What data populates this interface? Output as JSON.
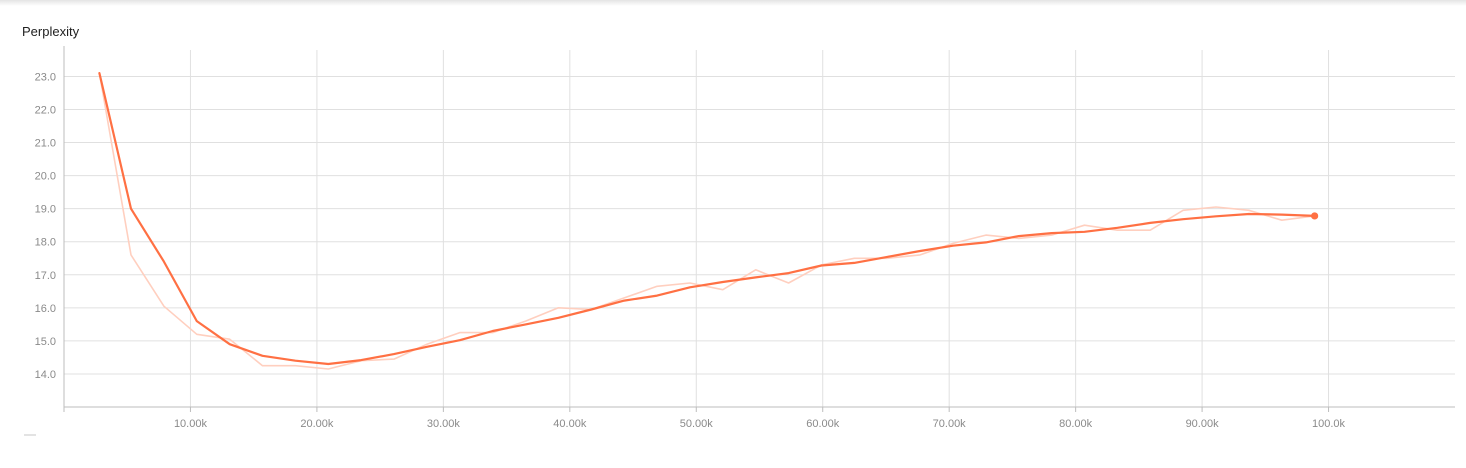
{
  "chart_data": {
    "type": "line",
    "title": "Perplexity",
    "xlabel": "",
    "ylabel": "",
    "xlim": [
      0,
      110000
    ],
    "ylim": [
      13,
      23.8
    ],
    "grid": true,
    "x_ticks": [
      10000,
      20000,
      30000,
      40000,
      50000,
      60000,
      70000,
      80000,
      90000,
      100000
    ],
    "x_tick_labels": [
      "10.00k",
      "20.00k",
      "30.00k",
      "40.00k",
      "50.00k",
      "60.00k",
      "70.00k",
      "80.00k",
      "90.00k",
      "100.0k"
    ],
    "y_ticks": [
      14,
      15,
      16,
      17,
      18,
      19,
      20,
      21,
      22,
      23
    ],
    "y_tick_labels": [
      "14.0",
      "15.0",
      "16.0",
      "17.0",
      "18.0",
      "19.0",
      "20.0",
      "21.0",
      "22.0",
      "23.0"
    ],
    "colors": {
      "smoothed": "#ff7043",
      "raw": "#ffcfbf",
      "grid": "#e0e0e0",
      "axis": "#bdbdbd"
    },
    "series": [
      {
        "role": "smoothed",
        "x": [
          2800,
          5300,
          7900,
          10500,
          13100,
          15700,
          18300,
          20900,
          23500,
          26100,
          28700,
          31300,
          33900,
          36500,
          39100,
          41700,
          44300,
          46900,
          49500,
          52100,
          54700,
          57300,
          59900,
          62500,
          65100,
          67700,
          70300,
          72900,
          75500,
          78100,
          80700,
          83300,
          85900,
          88500,
          91100,
          93700,
          96300,
          98900
        ],
        "values": [
          23.1,
          19.0,
          17.4,
          15.6,
          14.9,
          14.55,
          14.4,
          14.3,
          14.42,
          14.6,
          14.82,
          15.02,
          15.3,
          15.5,
          15.7,
          15.95,
          16.22,
          16.37,
          16.62,
          16.78,
          16.92,
          17.05,
          17.28,
          17.36,
          17.54,
          17.72,
          17.88,
          17.98,
          18.17,
          18.26,
          18.3,
          18.42,
          18.57,
          18.68,
          18.77,
          18.84,
          18.82,
          18.78
        ]
      },
      {
        "role": "raw",
        "x": [
          2800,
          5300,
          7900,
          10500,
          13100,
          15700,
          18300,
          20900,
          23500,
          26100,
          28700,
          31300,
          33900,
          36500,
          39100,
          41700,
          44300,
          46900,
          49500,
          52100,
          54700,
          57300,
          59900,
          62500,
          65100,
          67700,
          70300,
          72900,
          75500,
          78100,
          80700,
          83300,
          85900,
          88500,
          91100,
          93700,
          96300,
          98900
        ],
        "values": [
          23.1,
          17.6,
          16.05,
          15.2,
          15.05,
          14.25,
          14.25,
          14.15,
          14.4,
          14.45,
          14.9,
          15.25,
          15.25,
          15.6,
          16.0,
          15.95,
          16.3,
          16.65,
          16.75,
          16.55,
          17.15,
          16.75,
          17.3,
          17.5,
          17.5,
          17.6,
          17.95,
          18.2,
          18.1,
          18.2,
          18.5,
          18.35,
          18.35,
          18.95,
          19.05,
          18.95,
          18.65,
          18.78
        ]
      }
    ]
  }
}
